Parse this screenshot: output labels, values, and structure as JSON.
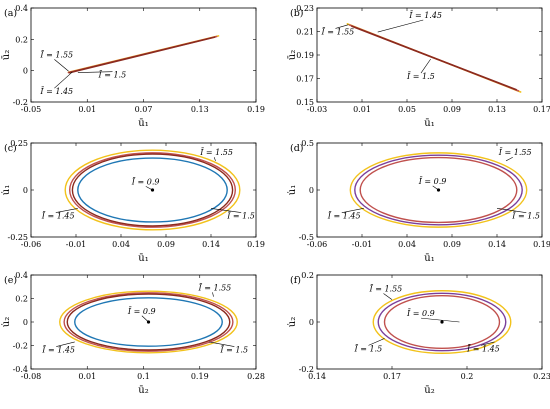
{
  "chart_data": [
    {
      "id": "a",
      "type": "line",
      "panel_label": "(a)",
      "xlabel": "ū₁",
      "ylabel": "ū₂",
      "xlim": [
        -0.05,
        0.19
      ],
      "ylim": [
        -0.2,
        0.4
      ],
      "xticks": [
        "-0.05",
        "0.01",
        "0.07",
        "0.13",
        "0.19"
      ],
      "yticks": [
        "-0.2",
        "0",
        "0.2",
        "0.4"
      ],
      "series": [
        {
          "color": "#f2c21b",
          "x": [
            -0.01,
            0.15
          ],
          "y": [
            -0.01,
            0.222
          ]
        },
        {
          "color": "#c0504d",
          "x": [
            -0.01,
            0.148
          ],
          "y": [
            -0.012,
            0.218
          ]
        },
        {
          "color": "#8b2a1e",
          "x": [
            -0.009,
            0.146
          ],
          "y": [
            -0.013,
            0.214
          ]
        }
      ],
      "annotations": [
        {
          "text": "Ī = 1.55",
          "at": [
            -0.04,
            0.085
          ],
          "to": [
            -0.01,
            -0.003
          ]
        },
        {
          "text": "Ī = 1.45",
          "at": [
            -0.04,
            -0.15
          ],
          "to": [
            -0.006,
            -0.009
          ]
        },
        {
          "text": "Ī = 1.5",
          "at": [
            0.022,
            -0.045
          ],
          "to": [
            0.0,
            -0.012
          ]
        }
      ]
    },
    {
      "id": "b",
      "type": "line",
      "panel_label": "(b)",
      "xlabel": "ū₁",
      "ylabel": "ū₂",
      "xlim": [
        -0.03,
        0.17
      ],
      "ylim": [
        0.15,
        0.23
      ],
      "xticks": [
        "-0.03",
        "0.01",
        "0.05",
        "0.09",
        "0.13",
        "0.17"
      ],
      "yticks": [
        "0.15",
        "0.17",
        "0.19",
        "0.21",
        "0.23"
      ],
      "series": [
        {
          "color": "#f2c21b",
          "x": [
            -0.003,
            0.151
          ],
          "y": [
            0.2165,
            0.1585
          ]
        },
        {
          "color": "#c0504d",
          "x": [
            -0.001,
            0.149
          ],
          "y": [
            0.2155,
            0.1595
          ]
        },
        {
          "color": "#8b2a1e",
          "x": [
            0.001,
            0.147
          ],
          "y": [
            0.2145,
            0.1605
          ]
        }
      ],
      "annotations": [
        {
          "text": "Ī = 1.45",
          "at": [
            0.052,
            0.2215
          ],
          "to": [
            0.024,
            0.2095
          ]
        },
        {
          "text": "Ī = 1.55",
          "at": [
            -0.026,
            0.2075
          ],
          "to": [
            -0.002,
            0.2158
          ]
        },
        {
          "text": "Ī = 1.5",
          "at": [
            0.05,
            0.1695
          ],
          "to": [
            0.071,
            0.1865
          ]
        }
      ]
    },
    {
      "id": "c",
      "type": "line",
      "panel_label": "(c)",
      "xlabel": "ū₁",
      "ylabel": "u̇₁",
      "xlim": [
        -0.06,
        0.19
      ],
      "ylim": [
        -0.25,
        0.25
      ],
      "xticks": [
        "-0.06",
        "-0.01",
        "0.04",
        "0.09",
        "0.14",
        "0.19"
      ],
      "yticks": [
        "-0.25",
        "0",
        "0.25"
      ],
      "center": [
        0.075,
        0.0
      ],
      "ellipses": [
        {
          "color": "#f2c21b",
          "rx": 0.097,
          "ry": 0.212
        },
        {
          "color": "#c0504d",
          "rx": 0.092,
          "ry": 0.198
        },
        {
          "color": "#8b2a1e",
          "rx": 0.089,
          "ry": 0.191
        },
        {
          "color": "#1f77b4",
          "rx": 0.083,
          "ry": 0.17
        }
      ],
      "annotations": [
        {
          "text": "Ī = 1.55",
          "at": [
            0.128,
            0.185
          ],
          "to": [
            0.145,
            0.155
          ]
        },
        {
          "text": "Ī = 0.9",
          "at": [
            0.052,
            0.03
          ],
          "to": [
            0.075,
            0.0
          ]
        },
        {
          "text": "Ī = 1.45",
          "at": [
            -0.048,
            -0.152
          ],
          "to": [
            -0.008,
            -0.098
          ]
        },
        {
          "text": "Ī = 1.5",
          "at": [
            0.158,
            -0.152
          ],
          "to": [
            0.14,
            -0.098
          ]
        }
      ]
    },
    {
      "id": "d",
      "type": "line",
      "panel_label": "(d)",
      "xlabel": "ū₁",
      "ylabel": "u̇₁",
      "xlim": [
        -0.06,
        0.19
      ],
      "ylim": [
        -0.5,
        0.5
      ],
      "xticks": [
        "-0.06",
        "-0.01",
        "0.04",
        "0.09",
        "0.14",
        "0.19"
      ],
      "yticks": [
        "-0.5",
        "0",
        "0.5"
      ],
      "center": [
        0.075,
        0.0
      ],
      "ellipses": [
        {
          "color": "#f2c21b",
          "rx": 0.098,
          "ry": 0.395
        },
        {
          "color": "#7a3f9a",
          "rx": 0.093,
          "ry": 0.37
        },
        {
          "color": "#c0504d",
          "rx": 0.087,
          "ry": 0.345
        }
      ],
      "annotations": [
        {
          "text": "Ī = 1.55",
          "at": [
            0.142,
            0.37
          ],
          "to": [
            0.15,
            0.31
          ]
        },
        {
          "text": "Ī = 0.9",
          "at": [
            0.053,
            0.065
          ],
          "to": [
            0.075,
            0.0
          ]
        },
        {
          "text": "Ī = 1.45",
          "at": [
            -0.048,
            -0.305
          ],
          "to": [
            -0.008,
            -0.195
          ]
        },
        {
          "text": "Ī = 1.5",
          "at": [
            0.157,
            -0.305
          ],
          "to": [
            0.14,
            -0.195
          ]
        }
      ]
    },
    {
      "id": "e",
      "type": "line",
      "panel_label": "(e)",
      "xlabel": "ū₂",
      "ylabel": "u̇₂",
      "xlim": [
        -0.08,
        0.28
      ],
      "ylim": [
        -0.4,
        0.4
      ],
      "xticks": [
        "-0.08",
        "0.01",
        "0.1",
        "0.19",
        "0.28"
      ],
      "yticks": [
        "-0.4",
        "-0.2",
        "0",
        "0.2",
        "0.4"
      ],
      "center": [
        0.108,
        0.0
      ],
      "ellipses": [
        {
          "color": "#f2c21b",
          "rx": 0.142,
          "ry": 0.262
        },
        {
          "color": "#c0504d",
          "rx": 0.135,
          "ry": 0.248
        },
        {
          "color": "#8b2a1e",
          "rx": 0.13,
          "ry": 0.238
        },
        {
          "color": "#1f77b4",
          "rx": 0.118,
          "ry": 0.206
        }
      ],
      "annotations": [
        {
          "text": "Ī = 1.55",
          "at": [
            0.188,
            0.27
          ],
          "to": [
            0.212,
            0.215
          ]
        },
        {
          "text": "Ī = 0.9",
          "at": [
            0.075,
            0.07
          ],
          "to": [
            0.108,
            0.0
          ]
        },
        {
          "text": "Ī = 1.45",
          "at": [
            -0.062,
            -0.26
          ],
          "to": [
            -0.01,
            -0.17
          ]
        },
        {
          "text": "Ī = 1.5",
          "at": [
            0.223,
            -0.26
          ],
          "to": [
            0.205,
            -0.17
          ]
        }
      ]
    },
    {
      "id": "f",
      "type": "line",
      "panel_label": "(f)",
      "xlabel": "ū₂",
      "ylabel": "u̇₂",
      "xlim": [
        0.14,
        0.23
      ],
      "ylim": [
        -0.2,
        0.2
      ],
      "xticks": [
        "0.14",
        "0.17",
        "0.2",
        "0.23"
      ],
      "yticks": [
        "-0.2",
        "0",
        "0.2"
      ],
      "center": [
        0.19,
        0.0
      ],
      "ellipses": [
        {
          "color": "#f2c21b",
          "rx": 0.0275,
          "ry": 0.133
        },
        {
          "color": "#7a3f9a",
          "rx": 0.0255,
          "ry": 0.122
        },
        {
          "color": "#c0504d",
          "rx": 0.023,
          "ry": 0.112
        }
      ],
      "annotations": [
        {
          "text": "Ī = 1.55",
          "at": [
            0.161,
            0.13
          ],
          "to": [
            0.17,
            0.095
          ]
        },
        {
          "text": "Ī = 0.9",
          "at": [
            0.176,
            0.025
          ],
          "to": [
            0.197,
            0.0
          ]
        },
        {
          "text": "Ī = 1.5",
          "at": [
            0.155,
            -0.125
          ],
          "to": [
            0.167,
            -0.07
          ]
        },
        {
          "text": "Ī = 1.45",
          "at": [
            0.2,
            -0.125
          ],
          "to": [
            0.211,
            -0.085
          ]
        }
      ]
    }
  ]
}
